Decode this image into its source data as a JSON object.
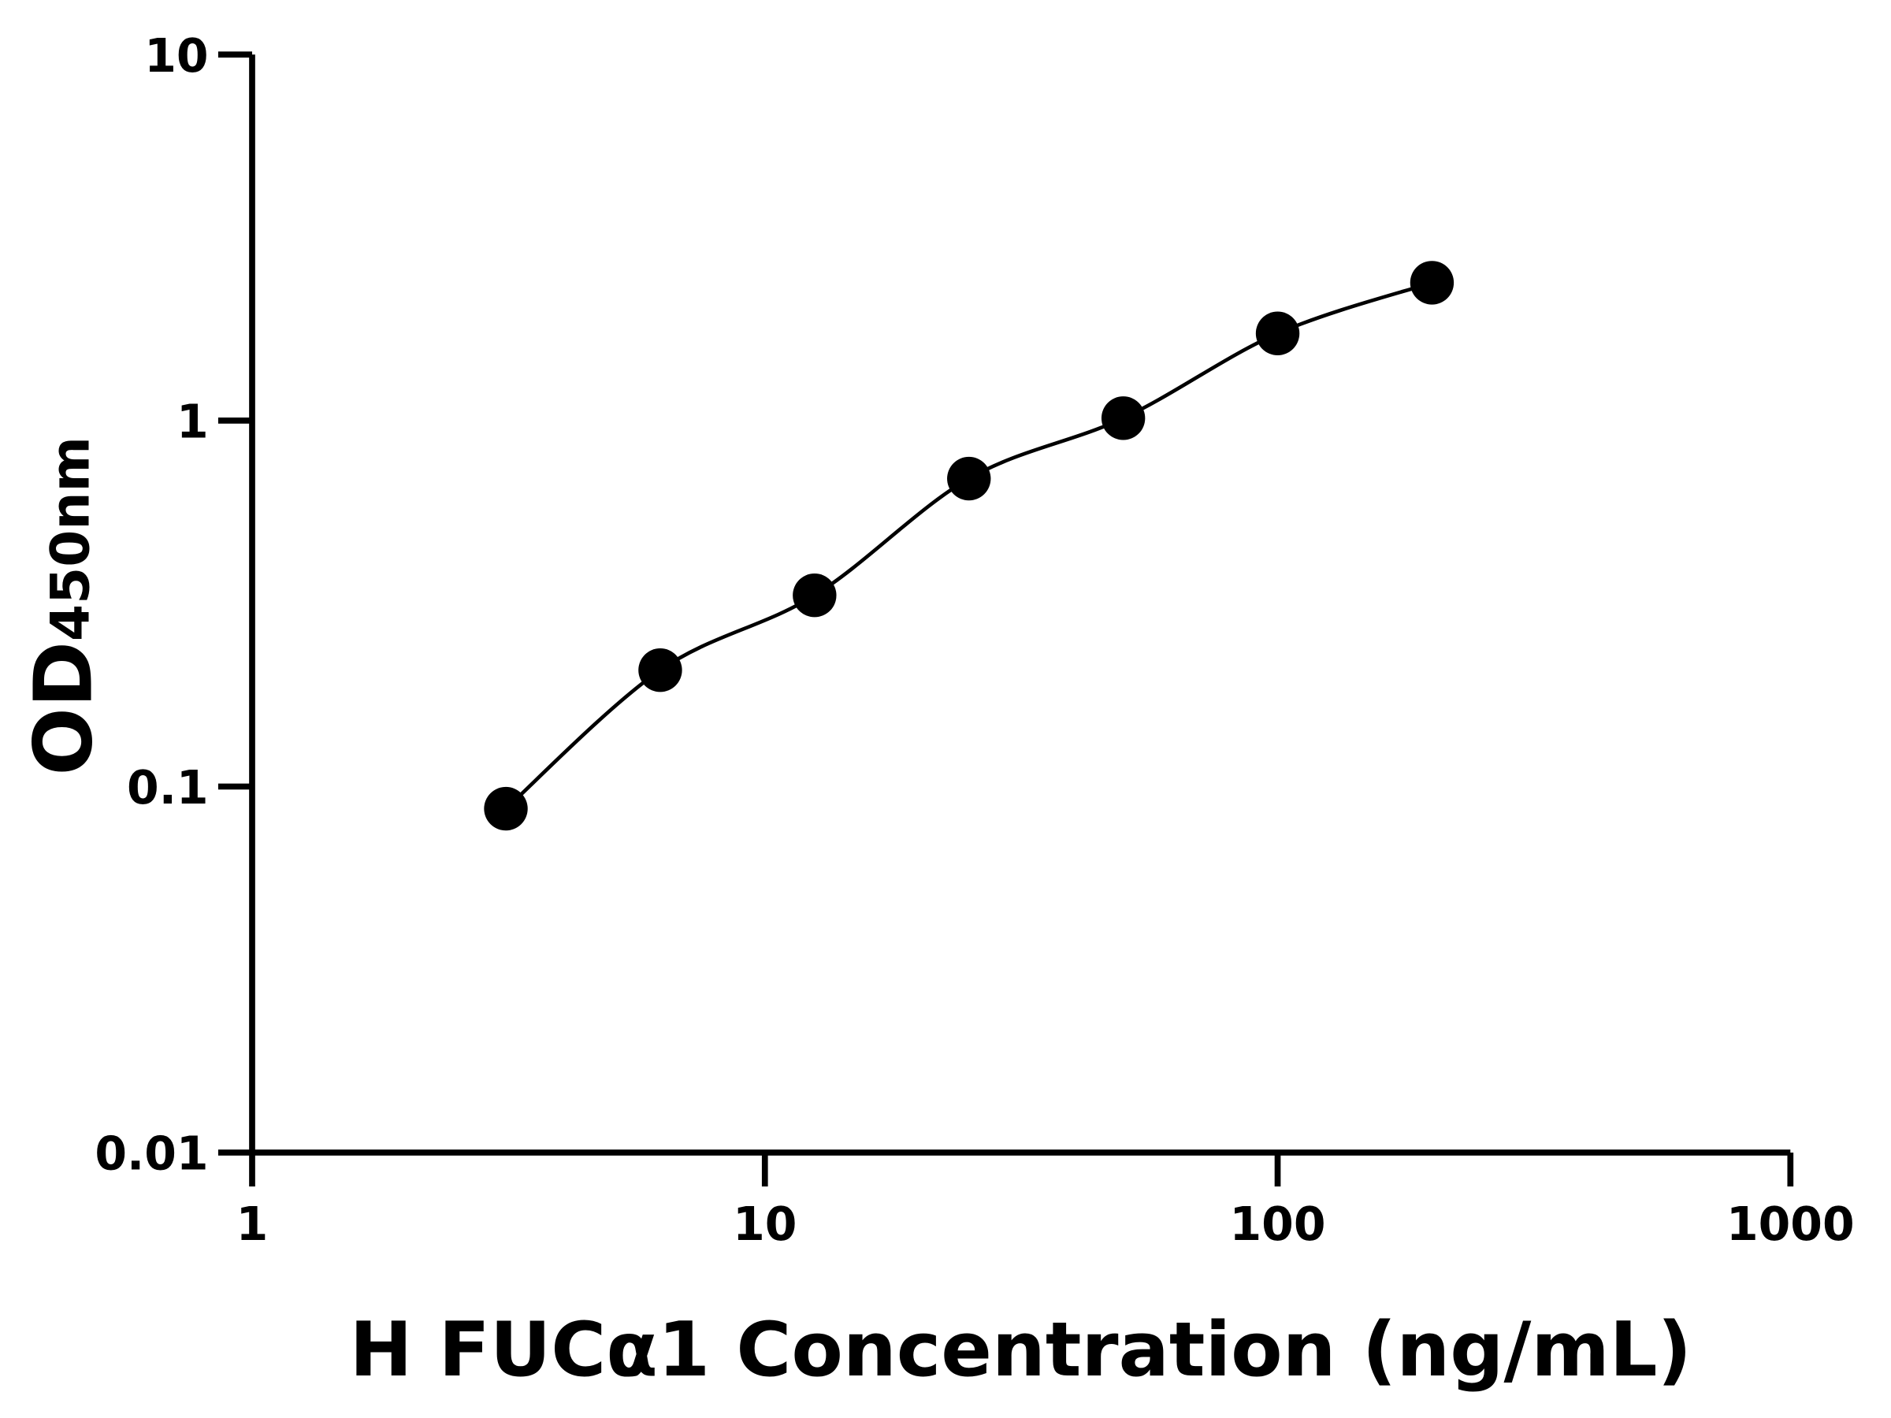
{
  "chart_data": {
    "type": "scatter",
    "xlabel": "H FUCα1 Concentration (ng/mL)",
    "ylabel_main": "OD",
    "ylabel_sub": "450nm",
    "x_scale": "log",
    "y_scale": "log",
    "xlim": [
      1,
      1000
    ],
    "ylim": [
      0.01,
      10
    ],
    "x_ticks": [
      1,
      10,
      100,
      1000
    ],
    "x_tick_labels": [
      "1",
      "10",
      "100",
      "1000"
    ],
    "y_ticks": [
      0.01,
      0.1,
      1,
      10
    ],
    "y_tick_labels": [
      "0.01",
      "0.1",
      "1",
      "10"
    ],
    "grid": false,
    "series": [
      {
        "x": [
          3.125,
          6.25,
          12.5,
          25,
          50,
          100,
          200
        ],
        "y": [
          0.087,
          0.208,
          0.333,
          0.694,
          1.015,
          1.73,
          2.38
        ],
        "fit_curve": true
      }
    ],
    "colors": {
      "points": "#000000",
      "line": "#000000",
      "axes": "#000000"
    }
  }
}
